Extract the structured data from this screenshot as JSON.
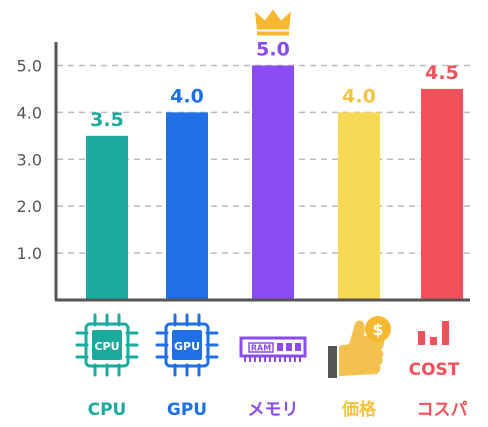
{
  "chart_data": {
    "type": "bar",
    "categories": [
      "CPU",
      "GPU",
      "メモリ",
      "価格",
      "コスパ"
    ],
    "values": [
      3.5,
      4.0,
      5.0,
      4.0,
      4.5
    ],
    "value_labels": [
      "3.5",
      "4.0",
      "5.0",
      "4.0",
      "4.5"
    ],
    "colors": [
      "#1aaa9e",
      "#1f6fe6",
      "#8a4cf0",
      "#f7d857",
      "#f2515a"
    ],
    "label_colors": [
      "#1aaa9e",
      "#1f6fe6",
      "#8a4cf0",
      "#f5c342",
      "#f2515a"
    ],
    "yticks": [
      "1.0",
      "2.0",
      "3.0",
      "4.0",
      "5.0"
    ],
    "ylim": [
      0,
      5.5
    ],
    "grid": true,
    "title": "",
    "xlabel": "",
    "ylabel": "",
    "highlight": {
      "category": "メモリ",
      "marker": "crown-icon",
      "color": "#f5b82e"
    }
  },
  "icons": {
    "cpu": {
      "name": "cpu-chip-icon",
      "text": "CPU",
      "color": "#1aaa9e"
    },
    "gpu": {
      "name": "gpu-chip-icon",
      "text": "GPU",
      "color": "#1f6fe6"
    },
    "ram": {
      "name": "ram-module-icon",
      "text": "RAM",
      "color": "#8a4cf0"
    },
    "price": {
      "name": "thumbs-up-coin-icon",
      "coin_text": "$",
      "color": "#f5b82e"
    },
    "cost": {
      "name": "cost-bars-icon",
      "text": "COST",
      "color": "#f2515a"
    }
  }
}
